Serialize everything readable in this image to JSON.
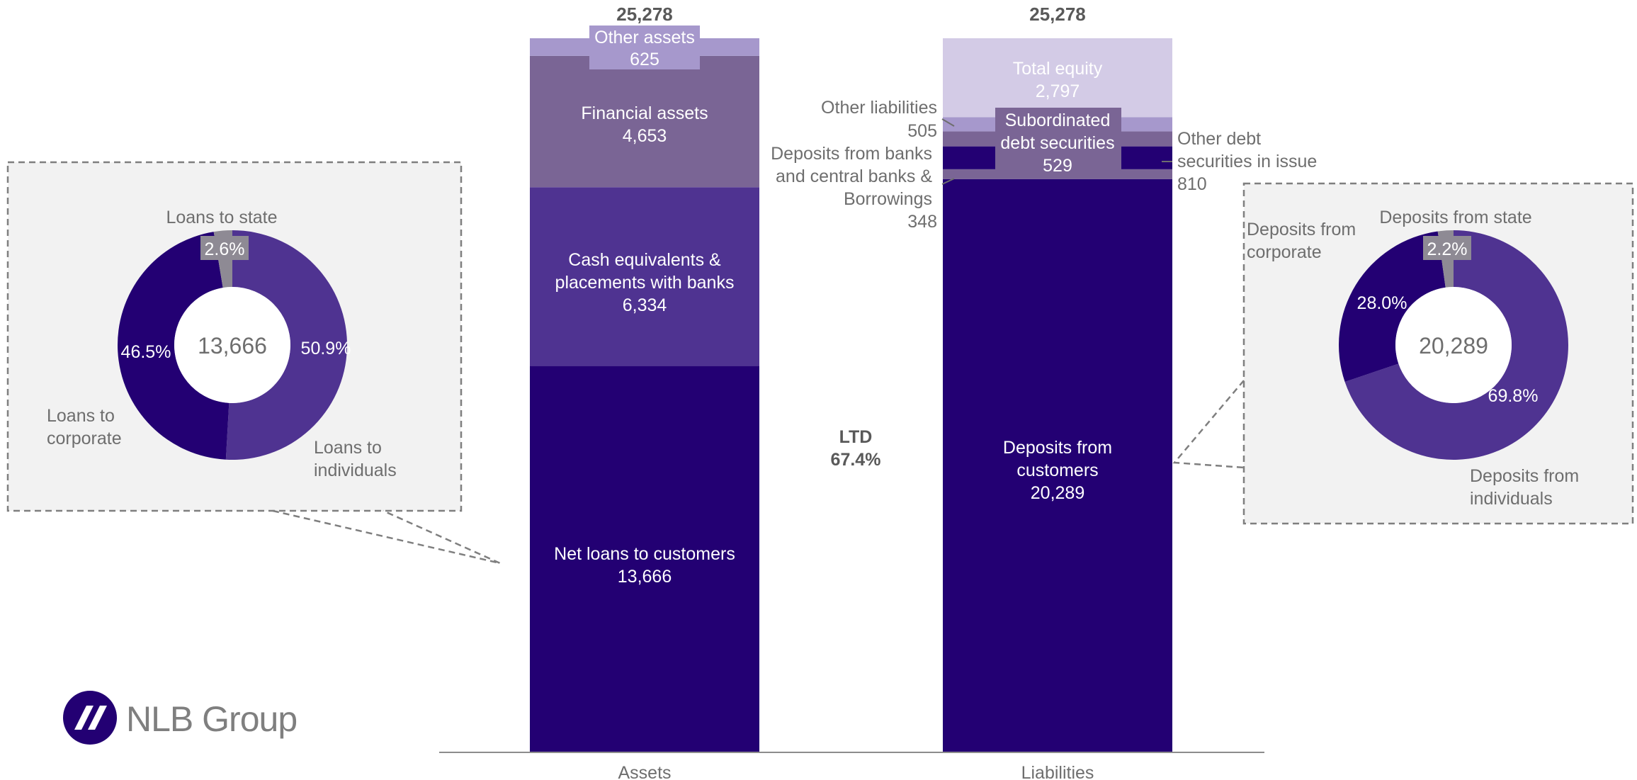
{
  "colors": {
    "dark": "#230073",
    "mid": "#4F3391",
    "muted": "#7A6595",
    "light": "#A698CC",
    "lighter": "#D3CBE6",
    "grey_segment": "#8E8A94",
    "label_grey": "#6E6E6E",
    "panel_bg": "#F2F2F2",
    "panel_border": "#7F7F7F"
  },
  "brand": {
    "logo_text": "NLB Group"
  },
  "chart_data": [
    {
      "type": "stacked_bar",
      "categories": [
        "Assets",
        "Liabilities"
      ],
      "ylim": [
        0,
        25278
      ],
      "grid": false,
      "totals": [
        "25,278",
        "25,278"
      ],
      "bars": [
        {
          "category": "Assets",
          "segments": [
            {
              "name": "Net loans to customers",
              "value": 13666,
              "value_label": "13,666"
            },
            {
              "name": "Cash equivalents & placements with banks",
              "value": 6334,
              "value_label": "6,334"
            },
            {
              "name": "Financial assets",
              "value": 4653,
              "value_label": "4,653"
            },
            {
              "name": "Other assets",
              "value": 625,
              "value_label": "625"
            }
          ]
        },
        {
          "category": "Liabilities",
          "segments": [
            {
              "name": "Deposits from customers",
              "value": 20289,
              "value_label": "20,289"
            },
            {
              "name": "Deposits from banks and central banks & Borrowings",
              "value": 348,
              "value_label": "348"
            },
            {
              "name": "Other debt securities in issue",
              "value": 810,
              "value_label": "810"
            },
            {
              "name": "Subordinated debt securities",
              "value": 529,
              "value_label": "529"
            },
            {
              "name": "Other liabilities",
              "value": 505,
              "value_label": "505"
            },
            {
              "name": "Total equity",
              "value": 2797,
              "value_label": "2,797"
            }
          ]
        }
      ],
      "annotation": {
        "label": "LTD",
        "value": "67.4%"
      }
    },
    {
      "type": "pie",
      "variant": "donut",
      "center_label": "13,666",
      "slices": [
        {
          "name": "Loans to individuals",
          "value": 50.9,
          "label": "50.9%"
        },
        {
          "name": "Loans to corporate",
          "value": 46.5,
          "label": "46.5%"
        },
        {
          "name": "Loans to state",
          "value": 2.6,
          "label": "2.6%"
        }
      ]
    },
    {
      "type": "pie",
      "variant": "donut",
      "center_label": "20,289",
      "slices": [
        {
          "name": "Deposits from individuals",
          "value": 69.8,
          "label": "69.8%"
        },
        {
          "name": "Deposits from corporate",
          "value": 28.0,
          "label": "28.0%"
        },
        {
          "name": "Deposits from state",
          "value": 2.2,
          "label": "2.2%"
        }
      ]
    }
  ]
}
